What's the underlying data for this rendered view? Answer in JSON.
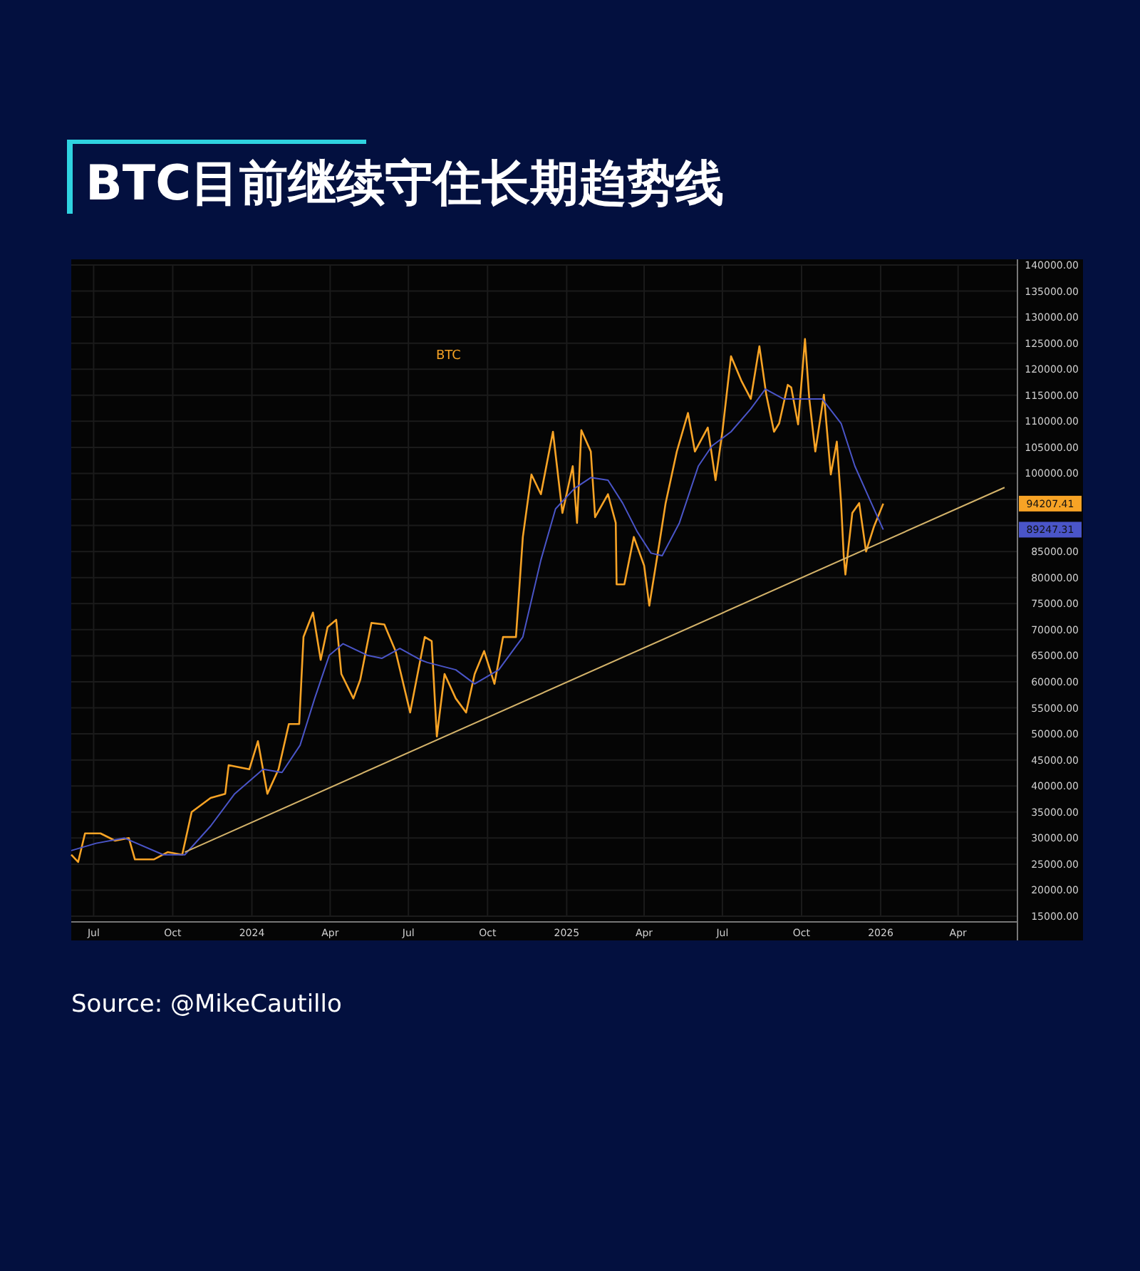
{
  "chart_data": {
    "type": "line",
    "title": "BTC目前继续守住长期趋势线",
    "annotations": [
      "Source: @MikeCautillo",
      "94207.41",
      "89247.31"
    ],
    "xlim": [
      "2023-06-05",
      "2026-06-09"
    ],
    "ylim": [
      15000,
      140000
    ],
    "xticks": [
      {
        "value": "2023-07-01",
        "label": "Jul"
      },
      {
        "value": "2023-10-01",
        "label": "Oct"
      },
      {
        "value": "2024-01-01",
        "label": "2024"
      },
      {
        "value": "2024-04-01",
        "label": "Apr"
      },
      {
        "value": "2024-07-01",
        "label": "Jul"
      },
      {
        "value": "2024-10-01",
        "label": "Oct"
      },
      {
        "value": "2025-01-01",
        "label": "2025"
      },
      {
        "value": "2025-04-01",
        "label": "Apr"
      },
      {
        "value": "2025-07-01",
        "label": "Jul"
      },
      {
        "value": "2025-10-01",
        "label": "Oct"
      },
      {
        "value": "2026-01-01",
        "label": "2026"
      },
      {
        "value": "2026-04-01",
        "label": "Apr"
      }
    ],
    "yticks": [
      {
        "value": 15000,
        "label": "15000.00"
      },
      {
        "value": 20000,
        "label": "20000.00"
      },
      {
        "value": 25000,
        "label": "25000.00"
      },
      {
        "value": 30000,
        "label": "30000.00"
      },
      {
        "value": 35000,
        "label": "35000.00"
      },
      {
        "value": 40000,
        "label": "40000.00"
      },
      {
        "value": 45000,
        "label": "45000.00"
      },
      {
        "value": 50000,
        "label": "50000.00"
      },
      {
        "value": 55000,
        "label": "55000.00"
      },
      {
        "value": 60000,
        "label": "60000.00"
      },
      {
        "value": 65000,
        "label": "65000.00"
      },
      {
        "value": 70000,
        "label": "70000.00"
      },
      {
        "value": 75000,
        "label": "75000.00"
      },
      {
        "value": 80000,
        "label": "80000.00"
      },
      {
        "value": 85000,
        "label": "85000.00"
      },
      {
        "value": 90000,
        "label": null
      },
      {
        "value": 95000,
        "label": null
      },
      {
        "value": 100000,
        "label": "100000.00"
      },
      {
        "value": 105000,
        "label": "105000.00"
      },
      {
        "value": 110000,
        "label": "110000.00"
      },
      {
        "value": 115000,
        "label": "115000.00"
      },
      {
        "value": 120000,
        "label": "120000.00"
      },
      {
        "value": 125000,
        "label": "125000.00"
      },
      {
        "value": 130000,
        "label": "130000.00"
      },
      {
        "value": 135000,
        "label": "135000.00"
      },
      {
        "value": 140000,
        "label": "140000.00"
      }
    ],
    "grid": true,
    "series": [
      {
        "name": "BTC",
        "color": "#f7a325",
        "x": [
          "2023-06-05",
          "2023-06-13",
          "2023-06-21",
          "2023-07-09",
          "2023-07-26",
          "2023-08-11",
          "2023-08-18",
          "2023-09-09",
          "2023-09-25",
          "2023-10-12",
          "2023-10-23",
          "2023-11-14",
          "2023-12-01",
          "2023-12-05",
          "2023-12-29",
          "2024-01-08",
          "2024-01-19",
          "2024-02-01",
          "2024-02-13",
          "2024-02-25",
          "2024-03-01",
          "2024-03-12",
          "2024-03-21",
          "2024-03-29",
          "2024-04-08",
          "2024-04-14",
          "2024-04-28",
          "2024-05-06",
          "2024-05-19",
          "2024-06-03",
          "2024-06-16",
          "2024-07-03",
          "2024-07-20",
          "2024-07-28",
          "2024-08-03",
          "2024-08-12",
          "2024-08-25",
          "2024-09-06",
          "2024-09-16",
          "2024-09-27",
          "2024-10-09",
          "2024-10-19",
          "2024-11-03",
          "2024-11-11",
          "2024-11-21",
          "2024-12-02",
          "2024-12-16",
          "2024-12-27",
          "2025-01-08",
          "2025-01-13",
          "2025-01-18",
          "2025-01-29",
          "2025-02-03",
          "2025-02-18",
          "2025-02-27",
          "2025-02-28",
          "2025-03-09",
          "2025-03-20",
          "2025-04-01",
          "2025-04-07",
          "2025-04-19",
          "2025-04-26",
          "2025-05-09",
          "2025-05-22",
          "2025-05-30",
          "2025-06-14",
          "2025-06-23",
          "2025-07-01",
          "2025-07-11",
          "2025-07-23",
          "2025-08-03",
          "2025-08-13",
          "2025-08-21",
          "2025-08-30",
          "2025-09-05",
          "2025-09-15",
          "2025-09-19",
          "2025-09-27",
          "2025-10-05",
          "2025-10-10",
          "2025-10-17",
          "2025-10-27",
          "2025-11-04",
          "2025-11-11",
          "2025-11-16",
          "2025-11-19",
          "2025-11-21",
          "2025-11-29",
          "2025-12-07",
          "2025-12-15",
          "2025-12-24",
          "2026-01-04"
        ],
        "values": [
          26800,
          25400,
          30900,
          30900,
          29500,
          30000,
          25900,
          25900,
          27300,
          26800,
          35000,
          37700,
          38500,
          44000,
          43200,
          48600,
          38500,
          43200,
          51900,
          51900,
          68600,
          73300,
          64200,
          70500,
          71900,
          61500,
          56800,
          60400,
          71300,
          71000,
          65900,
          54100,
          68600,
          67800,
          49500,
          61500,
          56800,
          54100,
          61500,
          65900,
          59600,
          68600,
          68600,
          87800,
          99800,
          96000,
          108000,
          92400,
          101400,
          90500,
          108300,
          104200,
          91600,
          96000,
          90500,
          78700,
          78700,
          87800,
          82300,
          74600,
          86900,
          94300,
          104200,
          111600,
          104200,
          108800,
          98700,
          108000,
          122500,
          117800,
          114300,
          124400,
          115100,
          108000,
          109600,
          117000,
          116500,
          109400,
          125800,
          114300,
          104200,
          115100,
          99800,
          106100,
          94300,
          84200,
          80600,
          92400,
          94300,
          85000,
          89700,
          94200
        ]
      },
      {
        "color": "#4a55c8",
        "x": [
          "2023-06-05",
          "2023-07-04",
          "2023-08-06",
          "2023-09-20",
          "2023-10-15",
          "2023-11-14",
          "2023-12-12",
          "2024-01-14",
          "2024-02-05",
          "2024-02-26",
          "2024-03-14",
          "2024-03-31",
          "2024-04-16",
          "2024-05-14",
          "2024-05-31",
          "2024-06-21",
          "2024-07-15",
          "2024-07-23",
          "2024-08-25",
          "2024-09-16",
          "2024-10-14",
          "2024-11-11",
          "2024-12-02",
          "2024-12-19",
          "2025-01-10",
          "2025-01-29",
          "2025-02-18",
          "2025-03-07",
          "2025-03-24",
          "2025-04-09",
          "2025-04-22",
          "2025-05-12",
          "2025-06-03",
          "2025-06-19",
          "2025-07-11",
          "2025-08-03",
          "2025-08-20",
          "2025-09-10",
          "2025-10-02",
          "2025-10-25",
          "2025-11-16",
          "2025-12-02",
          "2025-12-19",
          "2026-01-04"
        ],
        "values": [
          27600,
          29000,
          30000,
          26800,
          26800,
          32300,
          38500,
          43200,
          42600,
          47800,
          56800,
          65100,
          67300,
          65100,
          64500,
          66400,
          64200,
          63700,
          62300,
          59600,
          62300,
          68600,
          83400,
          93200,
          97100,
          99200,
          98700,
          94300,
          88800,
          84700,
          84200,
          90500,
          101400,
          105300,
          108000,
          112400,
          116200,
          114300,
          114300,
          114300,
          109600,
          101400,
          95100,
          89200
        ]
      },
      {
        "color": "#d4b36a",
        "x": [
          "2023-10-15",
          "2026-05-25"
        ],
        "values": [
          27300,
          97300
        ]
      }
    ]
  }
}
